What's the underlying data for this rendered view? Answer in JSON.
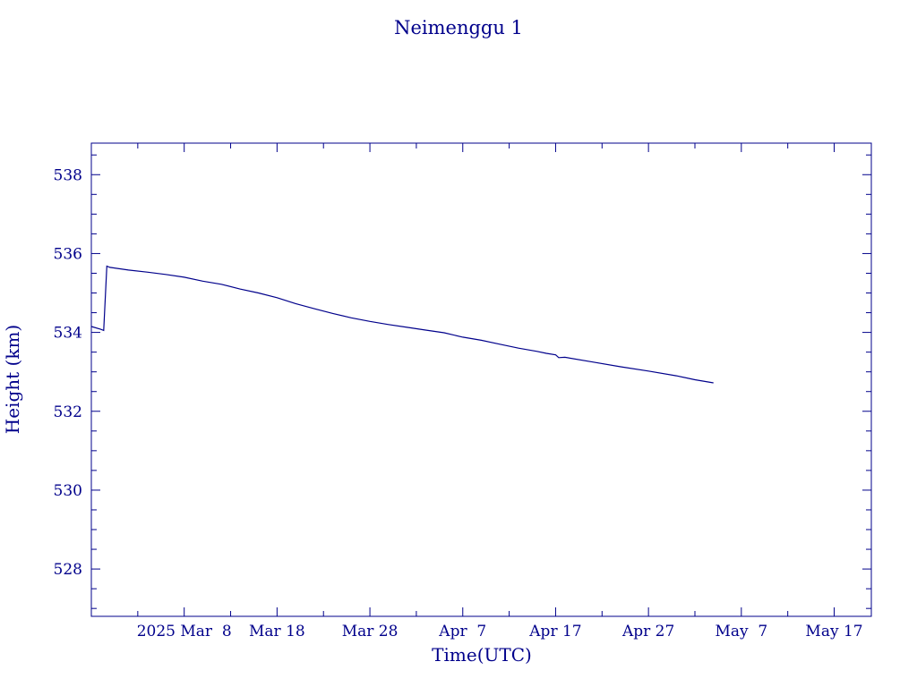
{
  "chart_data": {
    "type": "line",
    "title": "Neimenggu 1",
    "xlabel": "Time(UTC)",
    "ylabel": "Height (km)",
    "xlim": [
      "2025-02-26",
      "2025-05-21"
    ],
    "ylim": [
      526.8,
      538.8
    ],
    "x_tick_labels": [
      {
        "date": "2025-03-08",
        "label": "2025 Mar  8"
      },
      {
        "date": "2025-03-18",
        "label": "Mar 18"
      },
      {
        "date": "2025-03-28",
        "label": "Mar 28"
      },
      {
        "date": "2025-04-07",
        "label": "Apr  7"
      },
      {
        "date": "2025-04-17",
        "label": "Apr 17"
      },
      {
        "date": "2025-04-27",
        "label": "Apr 27"
      },
      {
        "date": "2025-05-07",
        "label": "May  7"
      },
      {
        "date": "2025-05-17",
        "label": "May 17"
      }
    ],
    "y_ticks": [
      528,
      530,
      532,
      534,
      536,
      538
    ],
    "grid": false,
    "series": [
      {
        "x": [
          "2025-02-26",
          "2025-02-27",
          "2025-02-27T08:00",
          "2025-02-27T16:00",
          "2025-02-28",
          "2025-03-02",
          "2025-03-04",
          "2025-03-06",
          "2025-03-08",
          "2025-03-10",
          "2025-03-12",
          "2025-03-14",
          "2025-03-16",
          "2025-03-18",
          "2025-03-20",
          "2025-03-22",
          "2025-03-24",
          "2025-03-26",
          "2025-03-28",
          "2025-03-30",
          "2025-04-01",
          "2025-04-03",
          "2025-04-05",
          "2025-04-07",
          "2025-04-09",
          "2025-04-11",
          "2025-04-13",
          "2025-04-15",
          "2025-04-16",
          "2025-04-17",
          "2025-04-17T08:00",
          "2025-04-18",
          "2025-04-21",
          "2025-04-24",
          "2025-04-27",
          "2025-04-30",
          "2025-05-02",
          "2025-05-04"
        ],
        "y": [
          534.15,
          534.08,
          534.05,
          535.68,
          535.65,
          535.58,
          535.53,
          535.47,
          535.4,
          535.3,
          535.22,
          535.1,
          535.0,
          534.88,
          534.73,
          534.6,
          534.48,
          534.37,
          534.28,
          534.2,
          534.13,
          534.06,
          533.99,
          533.88,
          533.8,
          533.7,
          533.6,
          533.52,
          533.47,
          533.43,
          533.36,
          533.37,
          533.25,
          533.13,
          533.02,
          532.9,
          532.8,
          532.72
        ]
      }
    ]
  }
}
